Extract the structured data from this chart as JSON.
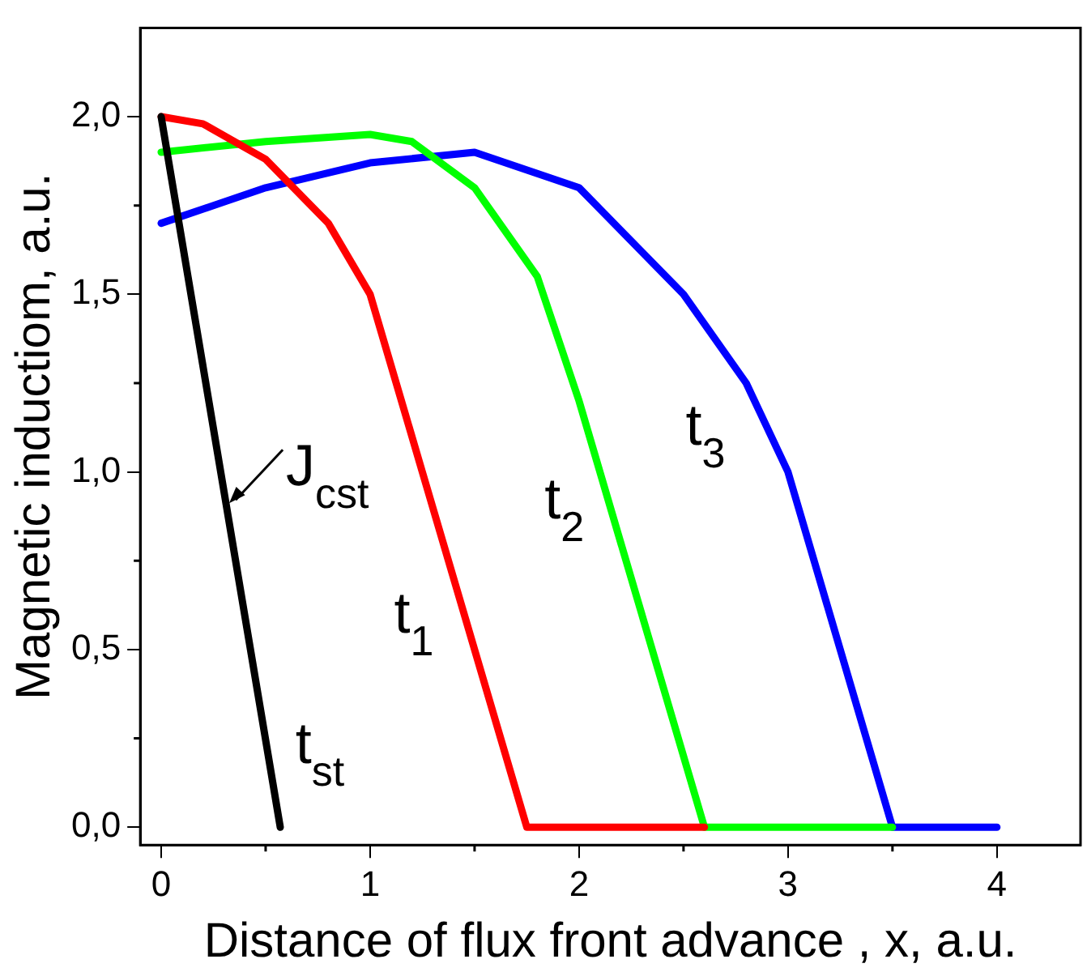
{
  "chart_data": {
    "type": "line",
    "xlabel": "Distance of flux front advance , x, a.u.",
    "ylabel": "Magnetic inductiom, a.u.",
    "xlim": [
      -0.1,
      4.4
    ],
    "xticks": [
      0,
      1,
      2,
      3,
      4
    ],
    "ylim": [
      -0.05,
      2.25
    ],
    "yticks": [
      {
        "value": 0,
        "label": "0,0"
      },
      {
        "value": 0.5,
        "label": "0,5"
      },
      {
        "value": 1,
        "label": "1,0"
      },
      {
        "value": 1.5,
        "label": "1,5"
      },
      {
        "value": 2,
        "label": "2,0"
      }
    ],
    "grid": false,
    "legend": false,
    "marker": "none",
    "line_style": "solid",
    "series": [
      {
        "name": "t$_{st}$",
        "color": "#000000",
        "x": [
          0,
          0.57
        ],
        "values": [
          2.0,
          0
        ]
      },
      {
        "name": "t$_{1}$",
        "color": "#ff0000",
        "x": [
          0,
          0.2,
          0.5,
          0.8,
          1.0,
          1.25,
          1.5,
          1.75,
          2.6
        ],
        "values": [
          2.0,
          1.98,
          1.88,
          1.7,
          1.5,
          1.0,
          0.5,
          0,
          0
        ]
      },
      {
        "name": "t$_{2}$",
        "color": "#00ff00",
        "x": [
          0,
          0.5,
          1.0,
          1.2,
          1.5,
          1.8,
          2.0,
          2.3,
          2.6,
          3.5
        ],
        "values": [
          1.9,
          1.93,
          1.95,
          1.93,
          1.8,
          1.55,
          1.2,
          0.6,
          0,
          0
        ]
      },
      {
        "name": "t$_{3}$",
        "color": "#0000ff",
        "x": [
          0,
          0.5,
          1.0,
          1.5,
          2.0,
          2.5,
          2.8,
          3.0,
          3.25,
          3.5,
          4.0
        ],
        "values": [
          1.7,
          1.8,
          1.87,
          1.9,
          1.8,
          1.5,
          1.25,
          1.0,
          0.5,
          0,
          0
        ]
      }
    ],
    "annotations": [
      "J$_{cst}$"
    ]
  }
}
